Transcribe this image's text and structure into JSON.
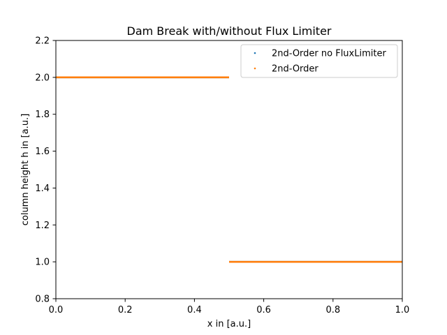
{
  "chart_data": {
    "type": "scatter",
    "title": "Dam Break with/without Flux Limiter",
    "xlabel": "x in [a.u.]",
    "ylabel": "column height h in [a.u.]",
    "xlim": [
      0.0,
      1.0
    ],
    "ylim": [
      0.8,
      2.2
    ],
    "xticks": [
      0.0,
      0.2,
      0.4,
      0.6,
      0.8,
      1.0
    ],
    "xtick_labels": [
      "0.0",
      "0.2",
      "0.4",
      "0.6",
      "0.8",
      "1.0"
    ],
    "yticks": [
      0.8,
      1.0,
      1.2,
      1.4,
      1.6,
      1.8,
      2.0,
      2.2
    ],
    "ytick_labels": [
      "0.8",
      "1.0",
      "1.2",
      "1.4",
      "1.6",
      "1.8",
      "2.0",
      "2.2"
    ],
    "grid": false,
    "legend_position": "top-right",
    "series": [
      {
        "name": "2nd-Order no FluxLimiter",
        "color": "#1f77b4",
        "segments": [
          {
            "x_start": 0.0,
            "x_end": 0.5,
            "y": 2.0
          },
          {
            "x_start": 0.5,
            "x_end": 1.0,
            "y": 1.0
          }
        ]
      },
      {
        "name": "2nd-Order",
        "color": "#ff7f0e",
        "segments": [
          {
            "x_start": 0.0,
            "x_end": 0.5,
            "y": 2.0
          },
          {
            "x_start": 0.5,
            "x_end": 1.0,
            "y": 1.0
          }
        ]
      }
    ]
  }
}
